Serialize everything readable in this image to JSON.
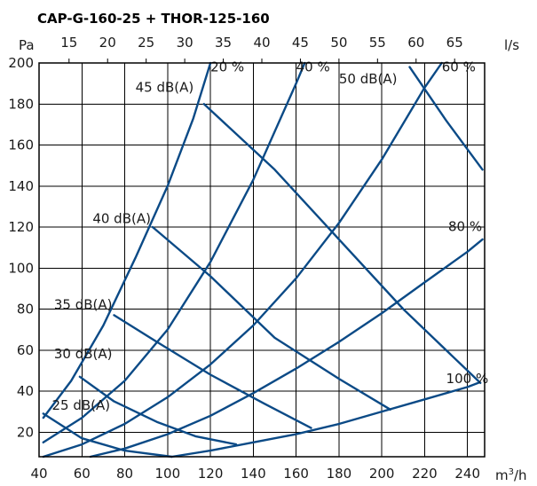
{
  "chart_data": {
    "type": "line",
    "title": "CAP-G-160-25 + THOR-125-160",
    "x_unit": "m³/h",
    "x_unit_base": "m",
    "x_unit_sup": "3",
    "x_unit_tail": "/h",
    "y_unit": "Pa",
    "top_axis_unit": "l/s",
    "xlim": [
      40,
      248
    ],
    "ylim": [
      8,
      200
    ],
    "x_ticks": [
      40,
      60,
      80,
      100,
      120,
      140,
      160,
      180,
      200,
      220,
      240
    ],
    "y_ticks": [
      20,
      40,
      60,
      80,
      100,
      120,
      140,
      160,
      180,
      200
    ],
    "top_ticks": [
      15,
      20,
      25,
      30,
      35,
      40,
      45,
      50,
      55,
      60,
      65
    ],
    "grid": true,
    "line_color": "#0b4a86",
    "valve_curves": [
      {
        "name": "20 %",
        "points": [
          [
            42,
            27
          ],
          [
            55,
            45
          ],
          [
            70,
            72
          ],
          [
            85,
            105
          ],
          [
            100,
            140
          ],
          [
            112,
            173
          ],
          [
            120,
            200
          ]
        ]
      },
      {
        "name": "40 %",
        "points": [
          [
            42,
            15
          ],
          [
            60,
            27
          ],
          [
            80,
            45
          ],
          [
            100,
            70
          ],
          [
            120,
            103
          ],
          [
            140,
            143
          ],
          [
            160,
            190
          ],
          [
            164,
            200
          ]
        ]
      },
      {
        "name": "60 %",
        "points": [
          [
            42,
            8
          ],
          [
            60,
            14
          ],
          [
            80,
            24
          ],
          [
            100,
            37
          ],
          [
            120,
            53
          ],
          [
            140,
            72
          ],
          [
            160,
            95
          ],
          [
            180,
            122
          ],
          [
            200,
            153
          ],
          [
            220,
            188
          ],
          [
            228,
            200
          ]
        ]
      },
      {
        "name": "80 %",
        "points": [
          [
            64,
            8
          ],
          [
            80,
            12
          ],
          [
            100,
            19
          ],
          [
            120,
            28
          ],
          [
            140,
            39
          ],
          [
            160,
            51
          ],
          [
            180,
            64
          ],
          [
            200,
            78
          ],
          [
            220,
            93
          ],
          [
            240,
            108
          ],
          [
            247,
            114
          ]
        ]
      },
      {
        "name": "100 %",
        "points": [
          [
            102,
            8
          ],
          [
            120,
            11
          ],
          [
            140,
            15
          ],
          [
            160,
            19
          ],
          [
            180,
            24
          ],
          [
            200,
            30
          ],
          [
            220,
            36
          ],
          [
            240,
            42
          ],
          [
            245,
            44
          ]
        ]
      }
    ],
    "sound_curves": [
      {
        "name": "25 dB(A)",
        "points": [
          [
            42,
            29
          ],
          [
            60,
            17
          ],
          [
            80,
            11
          ],
          [
            102,
            8
          ]
        ]
      },
      {
        "name": "30 dB(A)",
        "points": [
          [
            59,
            47
          ],
          [
            75,
            35
          ],
          [
            95,
            25
          ],
          [
            113,
            18
          ],
          [
            132,
            14
          ]
        ]
      },
      {
        "name": "35 dB(A)",
        "points": [
          [
            75,
            77
          ],
          [
            95,
            64
          ],
          [
            120,
            48
          ],
          [
            145,
            34
          ],
          [
            167,
            22
          ]
        ]
      },
      {
        "name": "40 dB(A)",
        "points": [
          [
            93,
            120
          ],
          [
            120,
            96
          ],
          [
            150,
            66
          ],
          [
            180,
            46
          ],
          [
            204,
            31
          ]
        ]
      },
      {
        "name": "45 dB(A)",
        "points": [
          [
            117,
            180
          ],
          [
            150,
            148
          ],
          [
            180,
            114
          ],
          [
            210,
            80
          ],
          [
            246,
            44
          ]
        ]
      },
      {
        "name": "50 dB(A)",
        "points": [
          [
            213,
            198
          ],
          [
            230,
            172
          ],
          [
            247,
            148
          ]
        ]
      }
    ],
    "annotations": [
      {
        "text": "20 %",
        "x": 120,
        "y": 196
      },
      {
        "text": "40 %",
        "x": 160,
        "y": 196
      },
      {
        "text": "60 %",
        "x": 228,
        "y": 196
      },
      {
        "text": "80 %",
        "x": 231,
        "y": 118
      },
      {
        "text": "100 %",
        "x": 230,
        "y": 44
      },
      {
        "text": "45 dB(A)",
        "x": 85,
        "y": 186
      },
      {
        "text": "50 dB(A)",
        "x": 180,
        "y": 190
      },
      {
        "text": "40 dB(A)",
        "x": 65,
        "y": 122
      },
      {
        "text": "35 dB(A)",
        "x": 47,
        "y": 80
      },
      {
        "text": "30 dB(A)",
        "x": 47,
        "y": 56
      },
      {
        "text": "25 dB(A)",
        "x": 46,
        "y": 31
      }
    ]
  }
}
